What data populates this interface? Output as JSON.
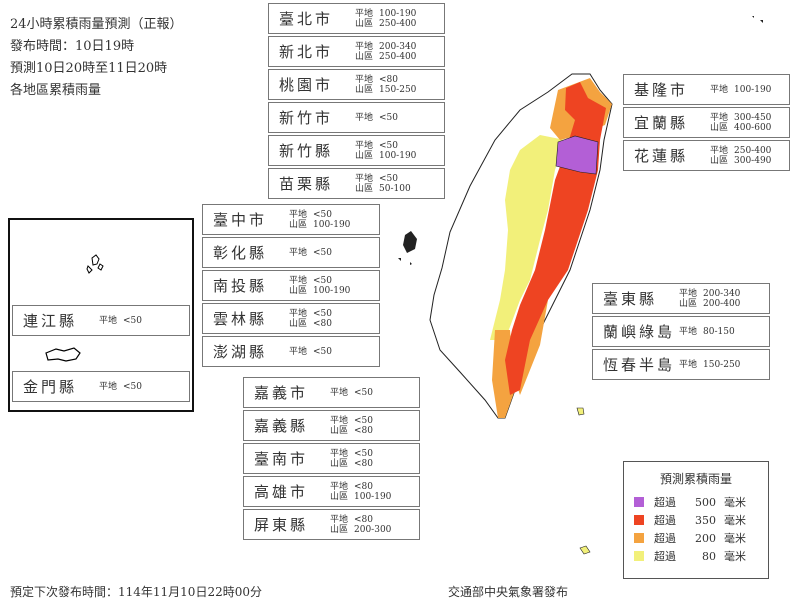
{
  "header": {
    "title": "24小時累積雨量預測（正報）",
    "issued": "發布時間：10日19時",
    "period": "預測10日20時至11日20時",
    "subtitle": "各地區累積雨量"
  },
  "labels": {
    "plain": "平地",
    "mountain": "山區"
  },
  "regions": [
    {
      "name": "臺北市",
      "plain": "100-190",
      "mountain": "250-400"
    },
    {
      "name": "新北市",
      "plain": "200-340",
      "mountain": "250-400"
    },
    {
      "name": "桃園市",
      "plain": "<80",
      "mountain": "150-250"
    },
    {
      "name": "新竹市",
      "plain": "<50"
    },
    {
      "name": "新竹縣",
      "plain": "<50",
      "mountain": "100-190"
    },
    {
      "name": "苗栗縣",
      "plain": "<50",
      "mountain": "50-100"
    },
    {
      "name": "臺中市",
      "plain": "<50",
      "mountain": "100-190"
    },
    {
      "name": "彰化縣",
      "plain": "<50"
    },
    {
      "name": "南投縣",
      "plain": "<50",
      "mountain": "100-190"
    },
    {
      "name": "雲林縣",
      "plain": "<50",
      "mountain": "<80"
    },
    {
      "name": "澎湖縣",
      "plain": "<50"
    },
    {
      "name": "嘉義市",
      "plain": "<50"
    },
    {
      "name": "嘉義縣",
      "plain": "<50",
      "mountain": "<80"
    },
    {
      "name": "臺南市",
      "plain": "<50",
      "mountain": "<80"
    },
    {
      "name": "高雄市",
      "plain": "<80",
      "mountain": "100-190"
    },
    {
      "name": "屏東縣",
      "plain": "<80",
      "mountain": "200-300"
    },
    {
      "name": "基隆市",
      "plain": "100-190"
    },
    {
      "name": "宜蘭縣",
      "plain": "300-450",
      "mountain": "400-600"
    },
    {
      "name": "花蓮縣",
      "plain": "250-400",
      "mountain": "300-490"
    },
    {
      "name": "臺東縣",
      "plain": "200-340",
      "mountain": "200-400"
    },
    {
      "name": "蘭嶼綠島",
      "plain": "80-150"
    },
    {
      "name": "恆春半島",
      "plain": "150-250"
    },
    {
      "name": "連江縣",
      "plain": "<50"
    },
    {
      "name": "金門縣",
      "plain": "<50"
    }
  ],
  "legend": {
    "title": "預測累積雨量",
    "items": [
      {
        "prefix": "超過",
        "value": "500",
        "unit": "毫米",
        "color": "#b35fd6"
      },
      {
        "prefix": "超過",
        "value": "350",
        "unit": "毫米",
        "color": "#ee4422"
      },
      {
        "prefix": "超過",
        "value": "200",
        "unit": "毫米",
        "color": "#f4a340"
      },
      {
        "prefix": "超過",
        "value": "80",
        "unit": "毫米",
        "color": "#f2f07a"
      }
    ]
  },
  "footer": {
    "next_issue": "預定下次發布時間：114年11月10日22時00分",
    "publisher": "交通部中央氣象署發布"
  }
}
